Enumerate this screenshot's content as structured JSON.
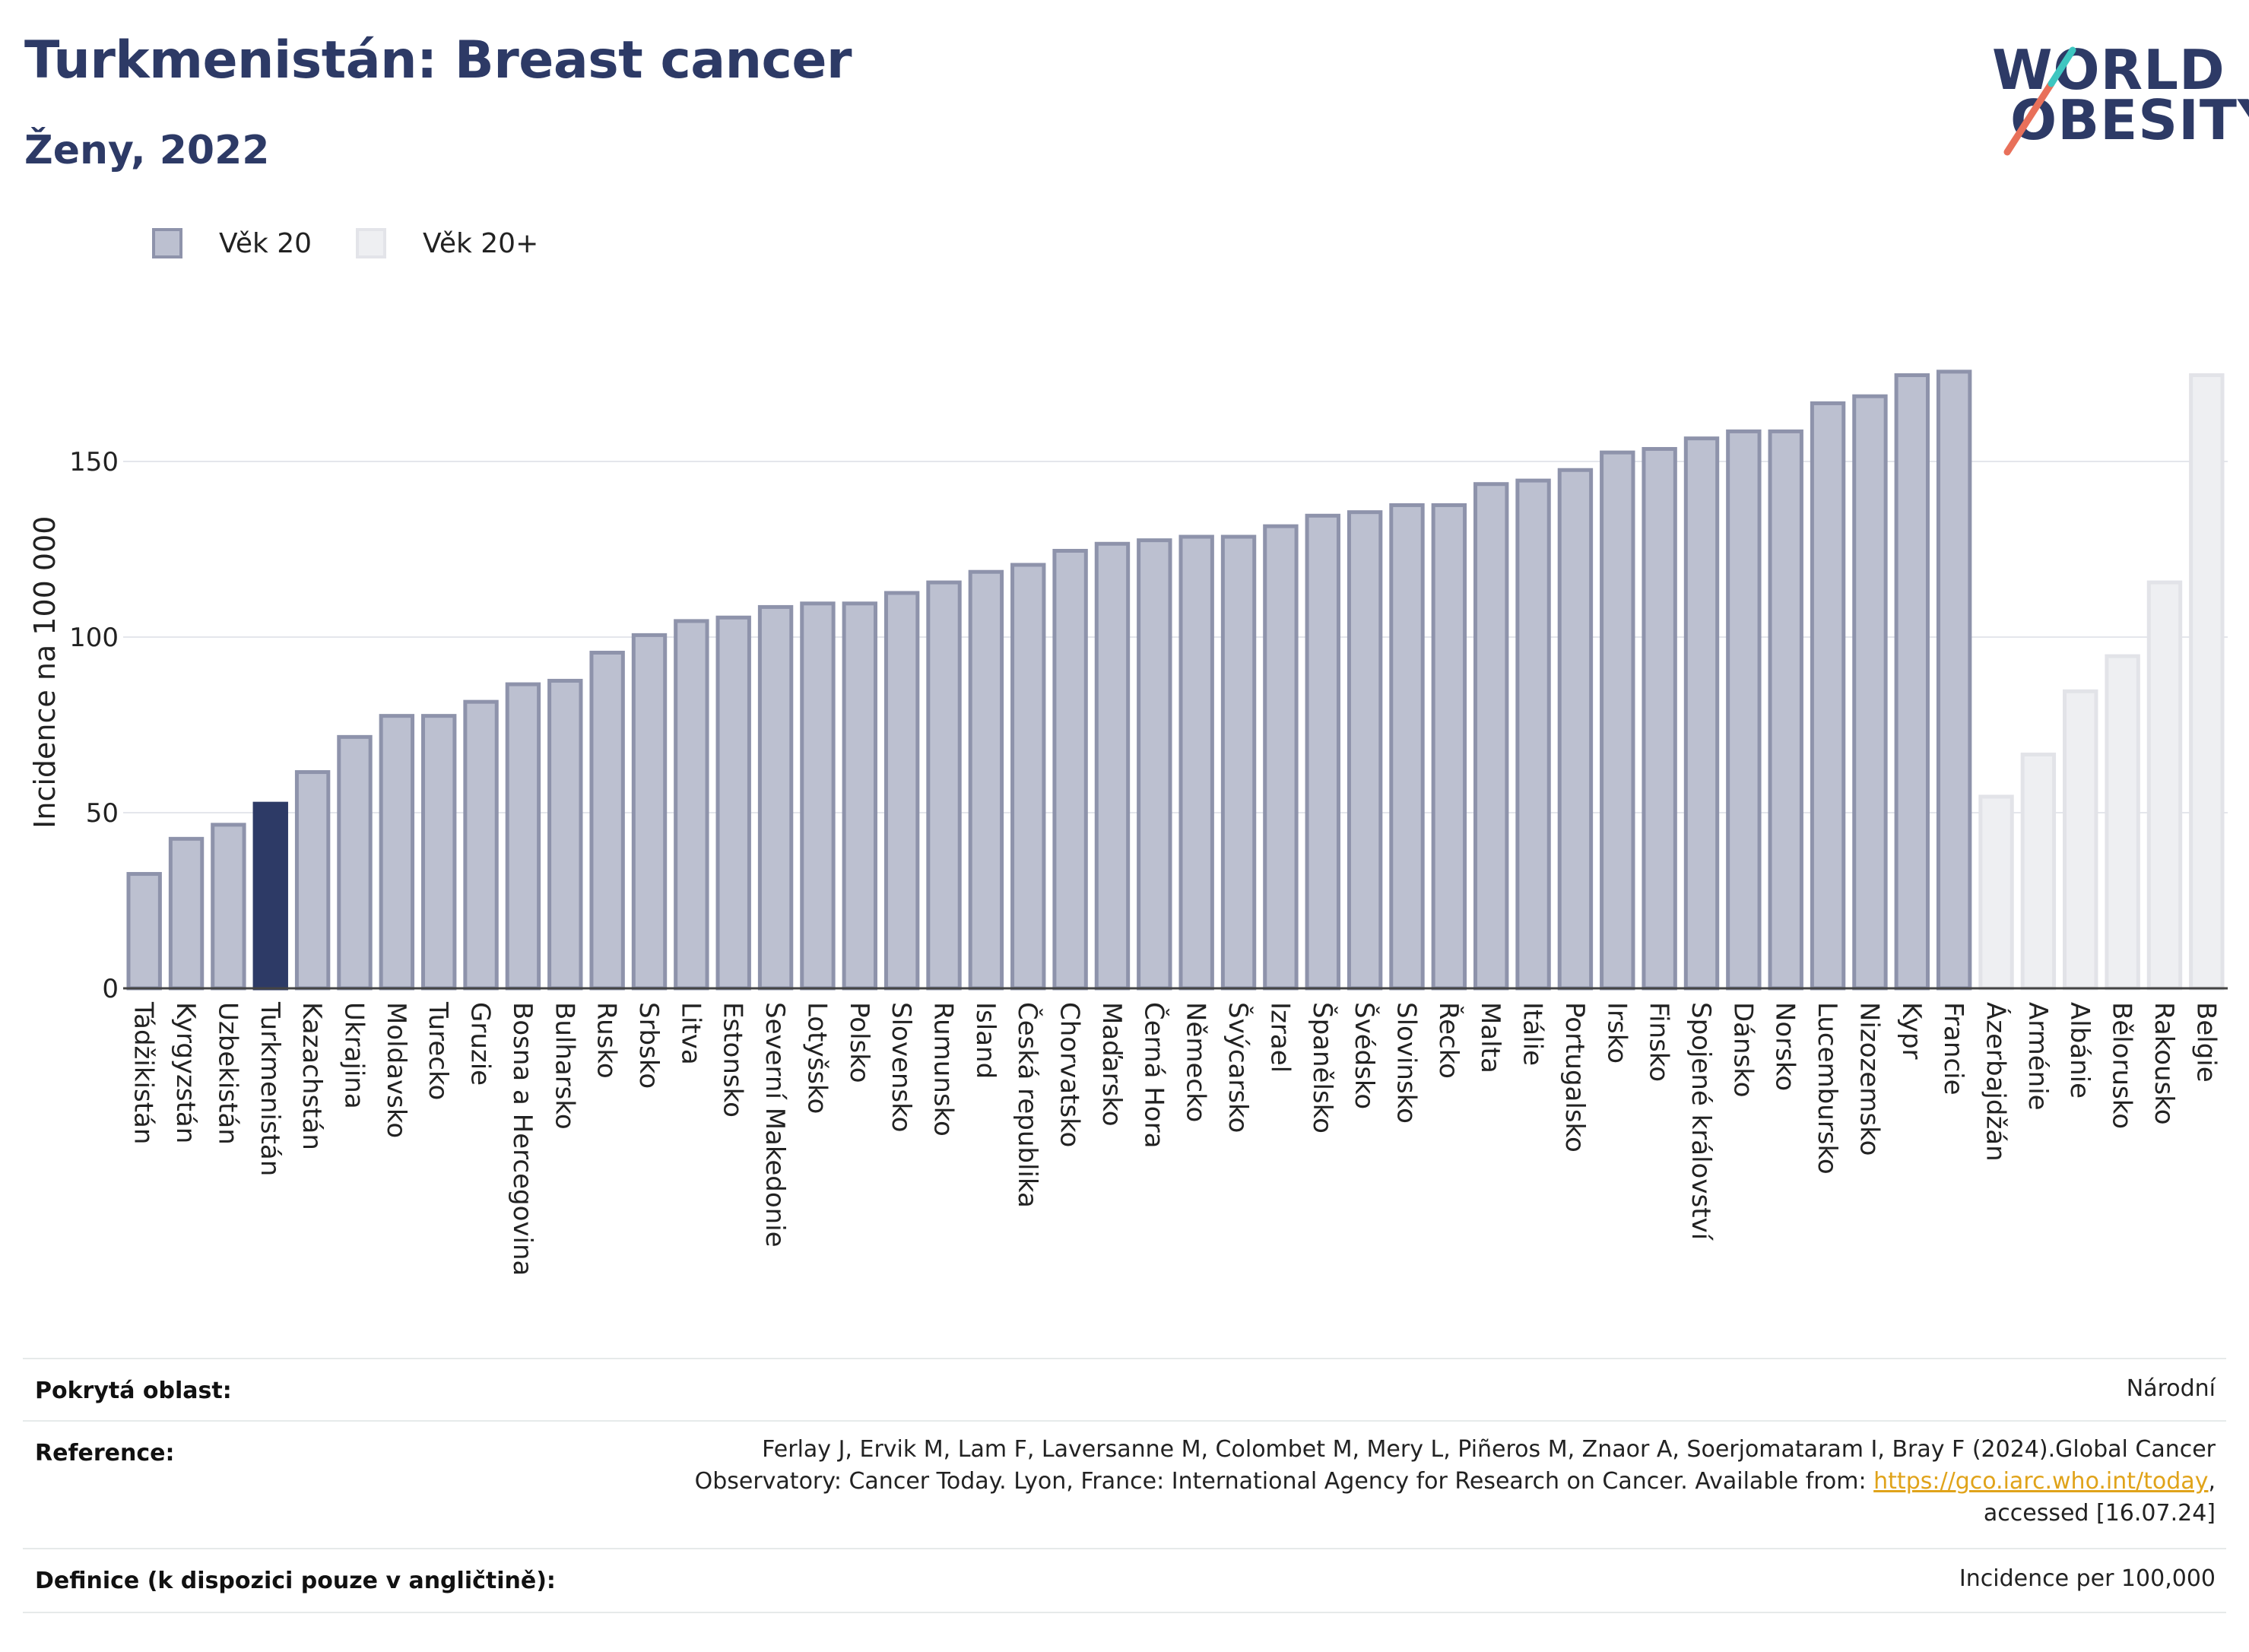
{
  "header": {
    "title": "Turkmenistán: Breast cancer",
    "subtitle": "Ženy, 2022"
  },
  "logo": {
    "line1": "WORLD",
    "line2": "OBESITY",
    "accent_colors": [
      "#e8705a",
      "#3ec6c0"
    ]
  },
  "legend": {
    "items": [
      {
        "label": "Věk 20",
        "color": "#bcc0d0",
        "border": "#8e93ab"
      },
      {
        "label": "Věk 20+",
        "color": "#eeeff2",
        "border": "#e3e4e9"
      }
    ]
  },
  "chart_data": {
    "type": "bar",
    "ylabel": "Incidence na 100 000",
    "ylim": [
      0,
      185
    ],
    "yticks": [
      0,
      50,
      100,
      150
    ],
    "grid": true,
    "highlight": "Turkmenistán",
    "colors": {
      "age20": "#bcc0d0",
      "age20_border": "#8e93ab",
      "age20plus": "#eeeff2",
      "age20plus_border": "#e2e3e8",
      "highlight": "#2d3a66"
    },
    "categories": [
      "Tádžikistán",
      "Kyrgyzstán",
      "Uzbekistán",
      "Turkmenistán",
      "Kazachstán",
      "Ukrajina",
      "Moldavsko",
      "Turecko",
      "Gruzie",
      "Bosna a Hercegovina",
      "Bulharsko",
      "Rusko",
      "Srbsko",
      "Litva",
      "Estonsko",
      "Severní Makedonie",
      "Lotyšsko",
      "Polsko",
      "Slovensko",
      "Rumunsko",
      "Island",
      "Česká republika",
      "Chorvatsko",
      "Maďarsko",
      "Černá Hora",
      "Německo",
      "Švýcarsko",
      "Izrael",
      "Španělsko",
      "Švédsko",
      "Slovinsko",
      "Řecko",
      "Malta",
      "Itálie",
      "Portugalsko",
      "Irsko",
      "Finsko",
      "Spojené království",
      "Dánsko",
      "Norsko",
      "Lucembursko",
      "Nizozemsko",
      "Kypr",
      "Francie",
      "Ázerbajdžán",
      "Arménie",
      "Albánie",
      "Bělorusko",
      "Rakousko",
      "Belgie"
    ],
    "values": [
      33,
      43,
      47,
      53,
      62,
      72,
      78,
      78,
      82,
      87,
      88,
      96,
      101,
      105,
      106,
      109,
      110,
      110,
      113,
      116,
      119,
      121,
      125,
      127,
      128,
      129,
      129,
      132,
      135,
      136,
      138,
      138,
      144,
      145,
      148,
      153,
      154,
      157,
      159,
      159,
      167,
      169,
      175,
      176,
      55,
      67,
      85,
      95,
      116,
      175
    ],
    "series_group": [
      "Věk 20",
      "Věk 20",
      "Věk 20",
      "Věk 20",
      "Věk 20",
      "Věk 20",
      "Věk 20",
      "Věk 20",
      "Věk 20",
      "Věk 20",
      "Věk 20",
      "Věk 20",
      "Věk 20",
      "Věk 20",
      "Věk 20",
      "Věk 20",
      "Věk 20",
      "Věk 20",
      "Věk 20",
      "Věk 20",
      "Věk 20",
      "Věk 20",
      "Věk 20",
      "Věk 20",
      "Věk 20",
      "Věk 20",
      "Věk 20",
      "Věk 20",
      "Věk 20",
      "Věk 20",
      "Věk 20",
      "Věk 20",
      "Věk 20",
      "Věk 20",
      "Věk 20",
      "Věk 20",
      "Věk 20",
      "Věk 20",
      "Věk 20",
      "Věk 20",
      "Věk 20",
      "Věk 20",
      "Věk 20",
      "Věk 20",
      "Věk 20+",
      "Věk 20+",
      "Věk 20+",
      "Věk 20+",
      "Věk 20+",
      "Věk 20+"
    ]
  },
  "info": {
    "coverage_label": "Pokrytá oblast:",
    "coverage_value": "Národní",
    "reference_label": "Reference:",
    "reference_text_1": "Ferlay J, Ervik M, Lam F, Laversanne M, Colombet M, Mery L, Piñeros M, Znaor A, Soerjomataram I, Bray F (2024).Global Cancer",
    "reference_text_2": "Observatory: Cancer Today. Lyon, France: International Agency for Research on Cancer. Available from: ",
    "reference_link": "https://gco.iarc.who.int/today",
    "reference_text_3": ",",
    "reference_text_4": "accessed [16.07.24]",
    "definition_label": "Definice (k dispozici pouze v angličtině):",
    "definition_value": "Incidence per 100,000"
  }
}
